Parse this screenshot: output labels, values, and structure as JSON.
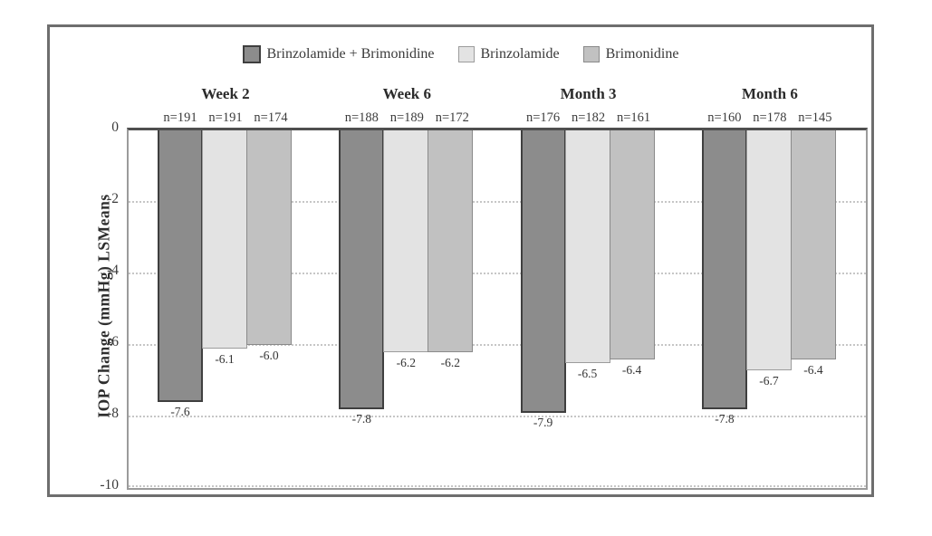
{
  "figure": {
    "border_color": "#6e6e6e",
    "background": "#ffffff"
  },
  "chart_data": {
    "type": "bar",
    "title": "",
    "xlabel": "",
    "ylabel": "IOP Change (mmHg) LSMeans",
    "ylim": [
      -10,
      0
    ],
    "yticks": [
      0,
      -2,
      -4,
      -6,
      -8,
      -10
    ],
    "ytick_labels": [
      "0",
      "-2",
      "-4",
      "-6",
      "-8",
      "-10"
    ],
    "grid": "horizontal dotted",
    "legend_position": "top-center",
    "categories": [
      "Week 2",
      "Week 6",
      "Month 3",
      "Month 6"
    ],
    "series": [
      {
        "name": "Brinzolamide + Brimonidine",
        "values": [
          -7.6,
          -7.8,
          -7.9,
          -7.8
        ],
        "n": [
          191,
          188,
          176,
          160
        ],
        "fill": "#8c8c8c",
        "border": "#3f3f3f"
      },
      {
        "name": "Brinzolamide",
        "values": [
          -6.1,
          -6.2,
          -6.5,
          -6.7
        ],
        "n": [
          191,
          189,
          182,
          178
        ],
        "fill": "#e3e3e3",
        "border": "#9c9c9c"
      },
      {
        "name": "Brimonidine",
        "values": [
          -6.0,
          -6.2,
          -6.4,
          -6.4
        ],
        "n": [
          174,
          172,
          161,
          145
        ],
        "fill": "#c1c1c1",
        "border": "#8a8a8a"
      }
    ],
    "n_labels": [
      [
        "n=191",
        "n=191",
        "n=174"
      ],
      [
        "n=188",
        "n=189",
        "n=172"
      ],
      [
        "n=176",
        "n=182",
        "n=161"
      ],
      [
        "n=160",
        "n=178",
        "n=145"
      ]
    ],
    "value_labels": [
      [
        "-7.6",
        "-6.1",
        "-6.0"
      ],
      [
        "-7.8",
        "-6.2",
        "-6.2"
      ],
      [
        "-7.9",
        "-6.5",
        "-6.4"
      ],
      [
        "-7.8",
        "-6.7",
        "-6.4"
      ]
    ]
  }
}
